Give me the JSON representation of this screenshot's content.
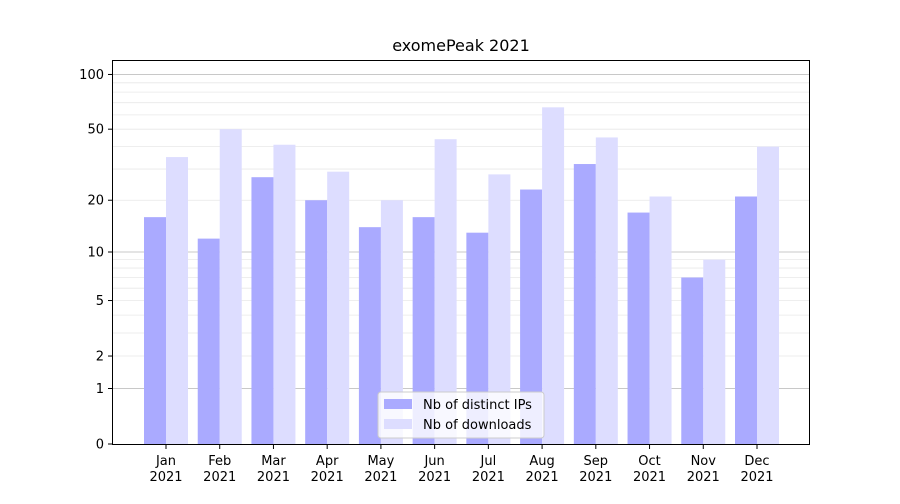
{
  "chart_data": {
    "type": "bar",
    "title": "exomePeak 2021",
    "xlabel": "",
    "ylabel": "",
    "yscale": "log(1+y)",
    "ylim": [
      0,
      120
    ],
    "yticks": [
      0,
      1,
      2,
      5,
      10,
      20,
      50,
      100
    ],
    "ytick_labels": [
      "0",
      "1",
      "2",
      "5",
      "10",
      "20",
      "50",
      "100"
    ],
    "categories": [
      "Jan\n2021",
      "Feb\n2021",
      "Mar\n2021",
      "Apr\n2021",
      "May\n2021",
      "Jun\n2021",
      "Jul\n2021",
      "Aug\n2021",
      "Sep\n2021",
      "Oct\n2021",
      "Nov\n2021",
      "Dec\n2021"
    ],
    "category_lines": [
      [
        "Jan",
        "2021"
      ],
      [
        "Feb",
        "2021"
      ],
      [
        "Mar",
        "2021"
      ],
      [
        "Apr",
        "2021"
      ],
      [
        "May",
        "2021"
      ],
      [
        "Jun",
        "2021"
      ],
      [
        "Jul",
        "2021"
      ],
      [
        "Aug",
        "2021"
      ],
      [
        "Sep",
        "2021"
      ],
      [
        "Oct",
        "2021"
      ],
      [
        "Nov",
        "2021"
      ],
      [
        "Dec",
        "2021"
      ]
    ],
    "series": [
      {
        "name": "Nb of distinct IPs",
        "color": "#aaaaff",
        "values": [
          16,
          12,
          27,
          20,
          14,
          16,
          13,
          23,
          32,
          17,
          7,
          21
        ]
      },
      {
        "name": "Nb of downloads",
        "color": "#ddddff",
        "values": [
          35,
          50,
          41,
          29,
          20,
          44,
          28,
          66,
          45,
          21,
          9,
          40
        ]
      }
    ],
    "legend_position": "bottom-center",
    "grid": "horizontal"
  }
}
